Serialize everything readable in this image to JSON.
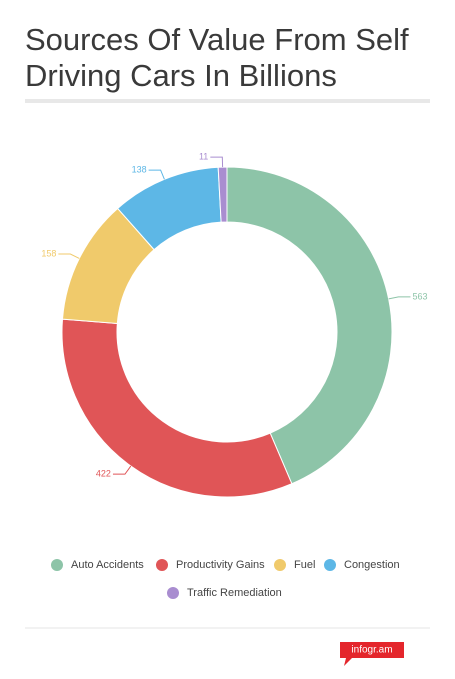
{
  "chart_data": {
    "type": "pie",
    "title": "Sources Of Value From Self Driving Cars In Billions",
    "categories": [
      "Auto Accidents",
      "Productivity Gains",
      "Fuel",
      "Congestion",
      "Traffic Remediation"
    ],
    "values": [
      563,
      422,
      158,
      138,
      11
    ],
    "colors": [
      "#8dc4a8",
      "#e05557",
      "#f0ca6b",
      "#5db7e6",
      "#a98dd0"
    ],
    "donut": true
  },
  "footer": {
    "brand": "infogr.am"
  }
}
